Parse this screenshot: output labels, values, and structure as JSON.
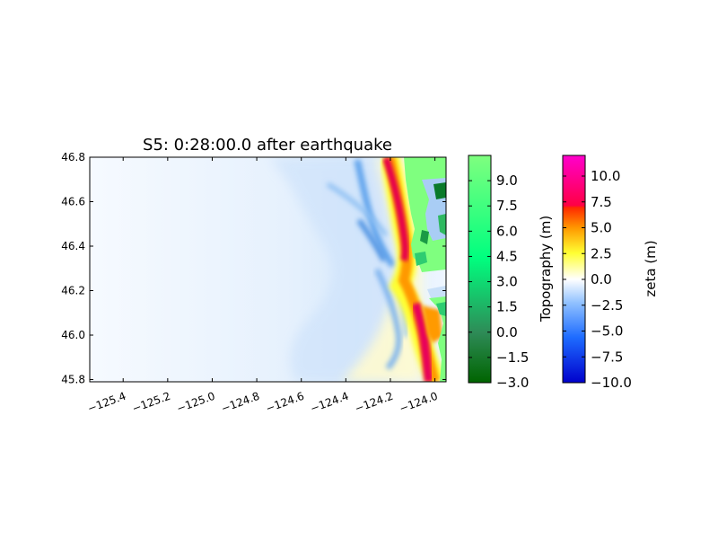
{
  "chart_data": [
    {
      "type": "heatmap",
      "title": "S5: 0:28:00.0 after earthquake",
      "xlabel": "",
      "ylabel": "",
      "xlim": [
        -125.55,
        -123.95
      ],
      "ylim": [
        45.79,
        46.8
      ],
      "x_ticks": [
        "−125.4",
        "−125.2",
        "−125.0",
        "−124.8",
        "−124.6",
        "−124.4",
        "−124.2",
        "−124.0"
      ],
      "x_tick_values": [
        -125.4,
        -125.2,
        -125.0,
        -124.8,
        -124.6,
        -124.4,
        -124.2,
        -124.0
      ],
      "y_ticks": [
        "45.8",
        "46.0",
        "46.2",
        "46.4",
        "46.6",
        "46.8"
      ],
      "y_tick_values": [
        45.8,
        46.0,
        46.2,
        46.4,
        46.6,
        46.8
      ],
      "grid": false,
      "field": "zeta (m) over offshore; Topography (m) over land",
      "wavefront_crest": [
        {
          "lat": 46.8,
          "lon": -124.12,
          "zeta": 9.5
        },
        {
          "lat": 46.6,
          "lon": -124.12,
          "zeta": 10.0
        },
        {
          "lat": 46.4,
          "lon": -124.11,
          "zeta": 10.5
        },
        {
          "lat": 46.3,
          "lon": -124.16,
          "zeta": 5.0
        },
        {
          "lat": 46.2,
          "lon": -124.18,
          "zeta": 3.0
        },
        {
          "lat": 46.1,
          "lon": -124.16,
          "zeta": 6.0
        },
        {
          "lat": 46.0,
          "lon": -124.12,
          "zeta": 9.0
        },
        {
          "lat": 45.85,
          "lon": -124.04,
          "zeta": 10.5
        }
      ],
      "trough": [
        {
          "lat": 46.8,
          "lon": -124.38,
          "zeta": -3.5
        },
        {
          "lat": 46.6,
          "lon": -124.33,
          "zeta": -3.0
        },
        {
          "lat": 46.45,
          "lon": -124.38,
          "zeta": -3.0
        },
        {
          "lat": 46.3,
          "lon": -124.29,
          "zeta": -2.0
        },
        {
          "lat": 46.1,
          "lon": -124.35,
          "zeta": -3.0
        },
        {
          "lat": 45.95,
          "lon": -124.3,
          "zeta": -2.5
        }
      ]
    },
    {
      "type": "colorbar",
      "label": "Topography (m)",
      "vmin": -3.0,
      "vmax": 10.5,
      "ticks": [
        "−3.0",
        "−1.5",
        "0.0",
        "1.5",
        "3.0",
        "4.5",
        "6.0",
        "7.5",
        "9.0"
      ],
      "tick_values": [
        -3.0,
        -1.5,
        0.0,
        1.5,
        3.0,
        4.5,
        6.0,
        7.5,
        9.0
      ],
      "colors": [
        "#006400",
        "#00ff7f",
        "#7fff7f"
      ]
    },
    {
      "type": "colorbar",
      "label": "zeta (m)",
      "vmin": -10.0,
      "vmax": 12.0,
      "ticks": [
        "−10.0",
        "−7.5",
        "−5.0",
        "−2.5",
        "0.0",
        "2.5",
        "5.0",
        "7.5",
        "10.0"
      ],
      "tick_values": [
        -10.0,
        -7.5,
        -5.0,
        -2.5,
        0.0,
        2.5,
        5.0,
        7.5,
        10.0
      ],
      "colors": [
        "#0000cc",
        "#3399ff",
        "#ffffff",
        "#ffff00",
        "#ff9900",
        "#ff0000",
        "#ff00ff"
      ]
    }
  ],
  "colors": {
    "land_light": "#7fff7f",
    "land_mid": "#2ecc71",
    "land_dark": "#0a7a2a",
    "bay_water": "#a9cdf5",
    "crest_red": "#e6004c",
    "crest_orange": "#ff9900",
    "crest_yellow": "#ffff33",
    "trough_blue": "#4a90e2"
  }
}
